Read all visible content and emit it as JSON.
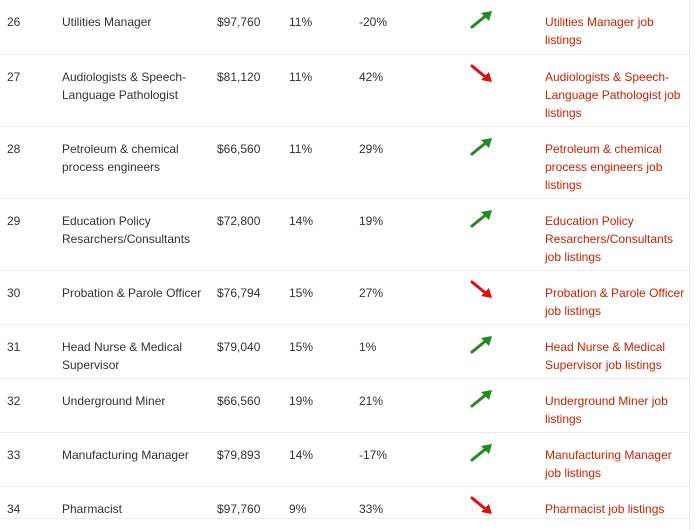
{
  "rows": [
    {
      "rank": "26",
      "job": "Utilities Manager",
      "salary": "$97,760",
      "unemployment": "11%",
      "growth": "-20%",
      "trend": "up",
      "link": "Utilities Manager job listings"
    },
    {
      "rank": "27",
      "job": "Audiologists & Speech-Language Pathologist",
      "salary": "$81,120",
      "unemployment": "11%",
      "growth": "42%",
      "trend": "down",
      "link": "Audiologists & Speech-Language Pathologist job listings"
    },
    {
      "rank": "28",
      "job": "Petroleum & chemical process engineers",
      "salary": "$66,560",
      "unemployment": "11%",
      "growth": "29%",
      "trend": "up",
      "link": "Petroleum & chemical process engineers job listings"
    },
    {
      "rank": "29",
      "job": "Education Policy Resarchers/Consultants",
      "salary": "$72,800",
      "unemployment": "14%",
      "growth": "19%",
      "trend": "up",
      "link": "Education Policy Resarchers/Consultants job listings"
    },
    {
      "rank": "30",
      "job": "Probation & Parole Officer",
      "salary": "$76,794",
      "unemployment": "15%",
      "growth": "27%",
      "trend": "down",
      "link": "Probation & Parole Officer job listings"
    },
    {
      "rank": "31",
      "job": "Head Nurse & Medical Supervisor",
      "salary": "$79,040",
      "unemployment": "15%",
      "growth": "1%",
      "trend": "up",
      "link": "Head Nurse & Medical Supervisor job listings"
    },
    {
      "rank": "32",
      "job": "Underground Miner",
      "salary": "$66,560",
      "unemployment": "19%",
      "growth": "21%",
      "trend": "up",
      "link": "Underground Miner job listings"
    },
    {
      "rank": "33",
      "job": "Manufacturing Manager",
      "salary": "$79,893",
      "unemployment": "14%",
      "growth": "-17%",
      "trend": "up",
      "link": "Manufacturing Manager job listings"
    },
    {
      "rank": "34",
      "job": "Pharmacist",
      "salary": "$97,760",
      "unemployment": "9%",
      "growth": "33%",
      "trend": "down",
      "link": "Pharmacist job listings"
    }
  ],
  "colors": {
    "up": "#1e8c1e",
    "down": "#e01010",
    "link": "#cc2200"
  }
}
